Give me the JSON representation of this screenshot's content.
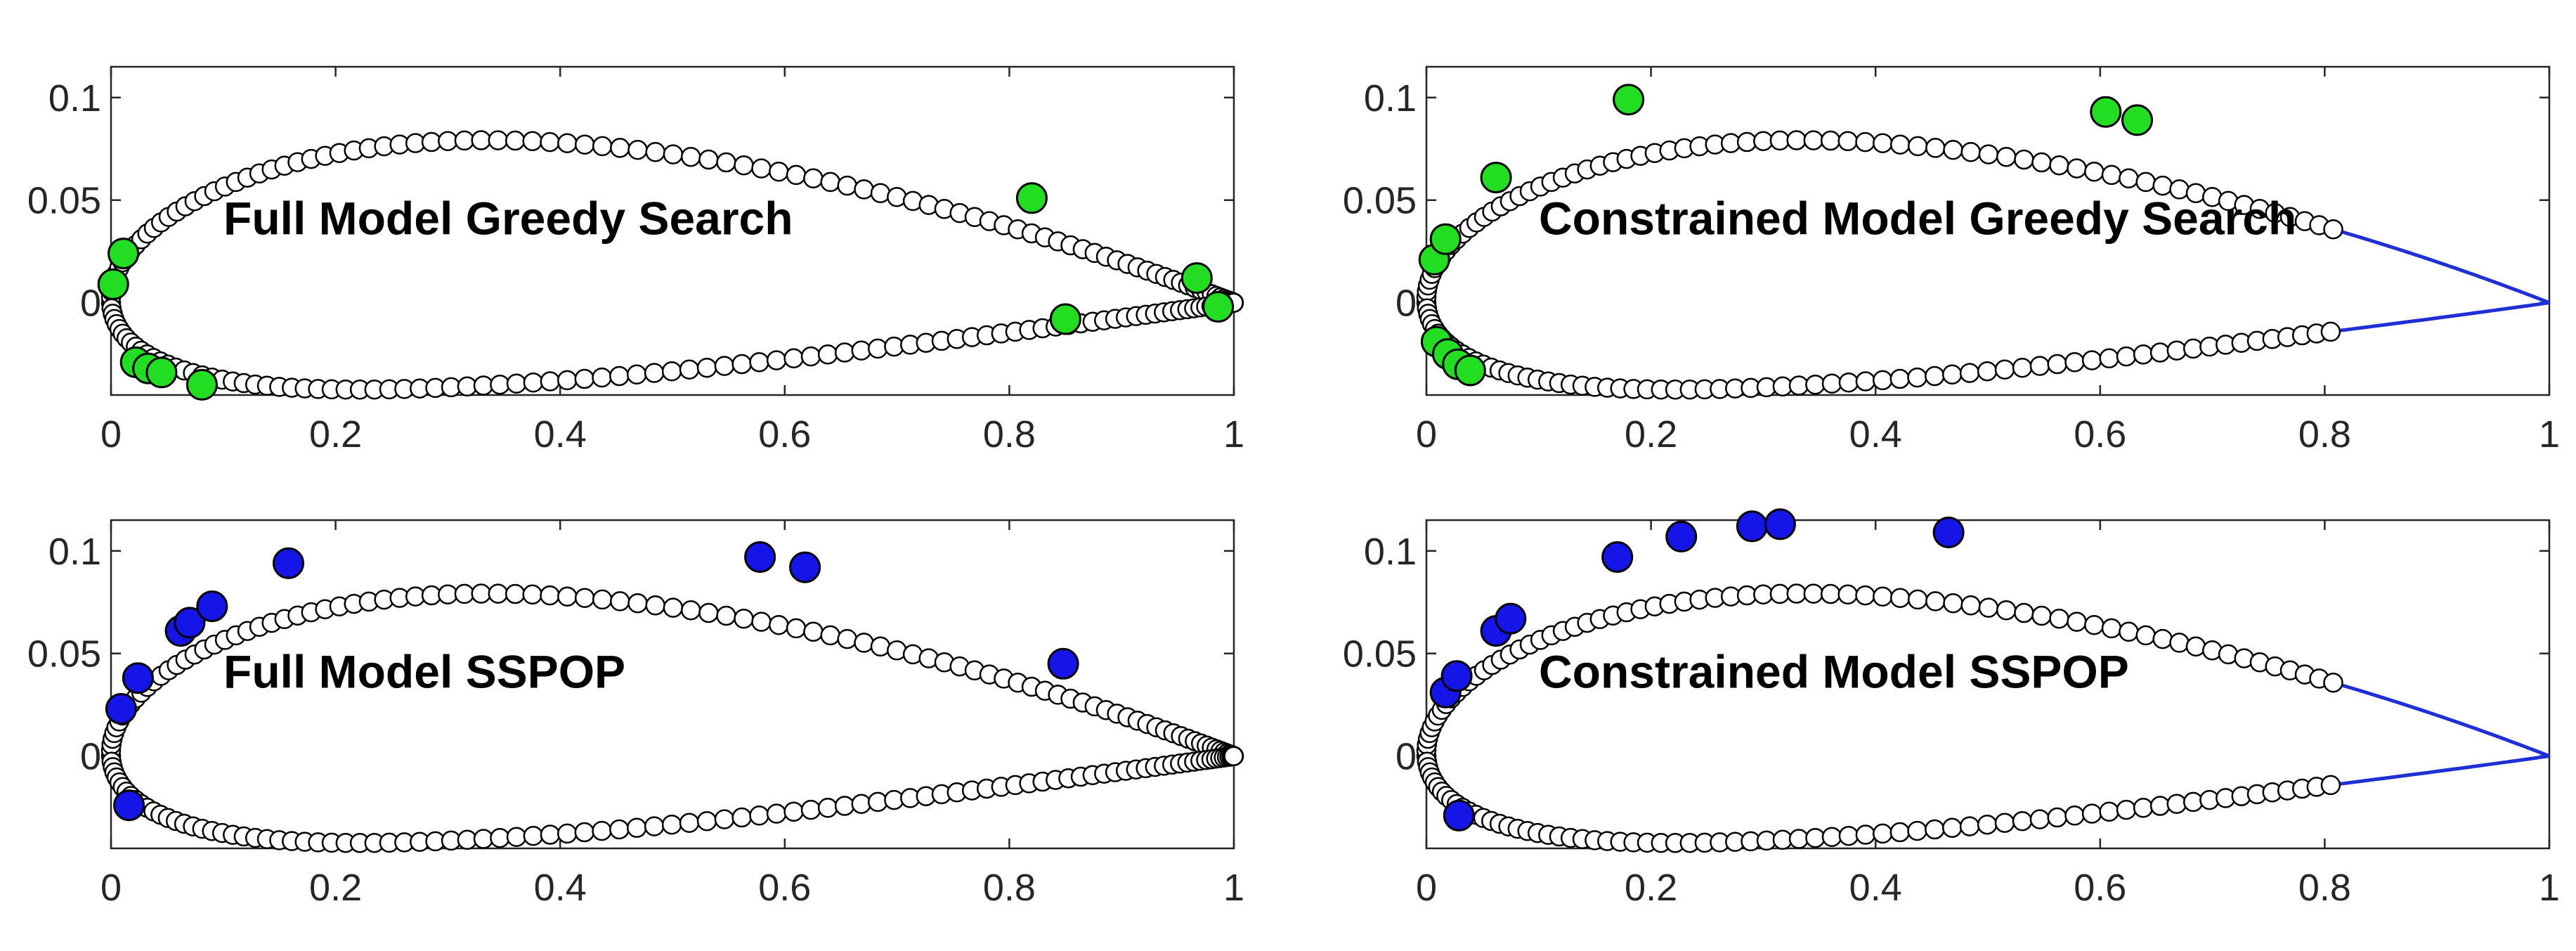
{
  "chart_data": [
    {
      "type": "scatter",
      "panel_label": "Full Model Greedy Search",
      "title": "",
      "xlabel": "",
      "ylabel": "",
      "xlim": [
        0,
        1
      ],
      "ylim": [
        -0.045,
        0.115
      ],
      "xticks": [
        "0",
        "0.2",
        "0.4",
        "0.6",
        "0.8",
        "1"
      ],
      "yticks": [
        "0",
        "0.05",
        "0.1"
      ],
      "grid": false,
      "airfoil": "closed",
      "selected_color": "#22dd22",
      "selected_points": [
        {
          "x": 0.002,
          "y": 0.009
        },
        {
          "x": 0.011,
          "y": 0.024
        },
        {
          "x": 0.022,
          "y": -0.029
        },
        {
          "x": 0.033,
          "y": -0.032
        },
        {
          "x": 0.045,
          "y": -0.034
        },
        {
          "x": 0.081,
          "y": -0.04
        },
        {
          "x": 0.82,
          "y": 0.051
        },
        {
          "x": 0.85,
          "y": -0.008
        },
        {
          "x": 0.967,
          "y": 0.012
        },
        {
          "x": 0.986,
          "y": -0.002
        }
      ]
    },
    {
      "type": "scatter",
      "panel_label": "Constrained Model Greedy Search",
      "title": "",
      "xlabel": "",
      "ylabel": "",
      "xlim": [
        0,
        1
      ],
      "ylim": [
        -0.045,
        0.115
      ],
      "xticks": [
        "0",
        "0.2",
        "0.4",
        "0.6",
        "0.8",
        "1"
      ],
      "yticks": [
        "0",
        "0.05",
        "0.1"
      ],
      "grid": false,
      "airfoil": "truncated",
      "sensor_cutoff_x": 0.81,
      "tail_line_color": "#1f2fd6",
      "selected_color": "#22dd22",
      "selected_points": [
        {
          "x": 0.007,
          "y": 0.021
        },
        {
          "x": 0.017,
          "y": 0.031
        },
        {
          "x": 0.009,
          "y": -0.019
        },
        {
          "x": 0.019,
          "y": -0.025
        },
        {
          "x": 0.028,
          "y": -0.03
        },
        {
          "x": 0.039,
          "y": -0.033
        },
        {
          "x": 0.062,
          "y": 0.061
        },
        {
          "x": 0.18,
          "y": 0.099
        },
        {
          "x": 0.605,
          "y": 0.093
        },
        {
          "x": 0.633,
          "y": 0.089
        }
      ]
    },
    {
      "type": "scatter",
      "panel_label": "Full Model SSPOP",
      "title": "",
      "xlabel": "",
      "ylabel": "",
      "xlim": [
        0,
        1
      ],
      "ylim": [
        -0.045,
        0.115
      ],
      "xticks": [
        "0",
        "0.2",
        "0.4",
        "0.6",
        "0.8",
        "1"
      ],
      "yticks": [
        "0",
        "0.05",
        "0.1"
      ],
      "grid": false,
      "airfoil": "closed",
      "selected_color": "#1515e8",
      "selected_points": [
        {
          "x": 0.009,
          "y": 0.023
        },
        {
          "x": 0.024,
          "y": 0.038
        },
        {
          "x": 0.062,
          "y": 0.061
        },
        {
          "x": 0.07,
          "y": 0.065
        },
        {
          "x": 0.09,
          "y": 0.073
        },
        {
          "x": 0.158,
          "y": 0.094
        },
        {
          "x": 0.578,
          "y": 0.097
        },
        {
          "x": 0.618,
          "y": 0.092
        },
        {
          "x": 0.848,
          "y": 0.045
        },
        {
          "x": 0.016,
          "y": -0.024
        }
      ]
    },
    {
      "type": "scatter",
      "panel_label": "Constrained Model SSPOP",
      "title": "",
      "xlabel": "",
      "ylabel": "",
      "xlim": [
        0,
        1
      ],
      "ylim": [
        -0.045,
        0.115
      ],
      "xticks": [
        "0",
        "0.2",
        "0.4",
        "0.6",
        "0.8",
        "1"
      ],
      "yticks": [
        "0",
        "0.05",
        "0.1"
      ],
      "grid": false,
      "airfoil": "truncated",
      "sensor_cutoff_x": 0.81,
      "tail_line_color": "#1f2fd6",
      "selected_color": "#1515e8",
      "selected_points": [
        {
          "x": 0.017,
          "y": 0.031
        },
        {
          "x": 0.027,
          "y": 0.039
        },
        {
          "x": 0.062,
          "y": 0.061
        },
        {
          "x": 0.075,
          "y": 0.067
        },
        {
          "x": 0.17,
          "y": 0.097
        },
        {
          "x": 0.227,
          "y": 0.107
        },
        {
          "x": 0.29,
          "y": 0.112
        },
        {
          "x": 0.315,
          "y": 0.113
        },
        {
          "x": 0.465,
          "y": 0.109
        },
        {
          "x": 0.029,
          "y": -0.029
        }
      ]
    }
  ],
  "colors": {
    "axis": "#262626",
    "sensor_fill": "#ffffff",
    "sensor_stroke": "#000000"
  }
}
